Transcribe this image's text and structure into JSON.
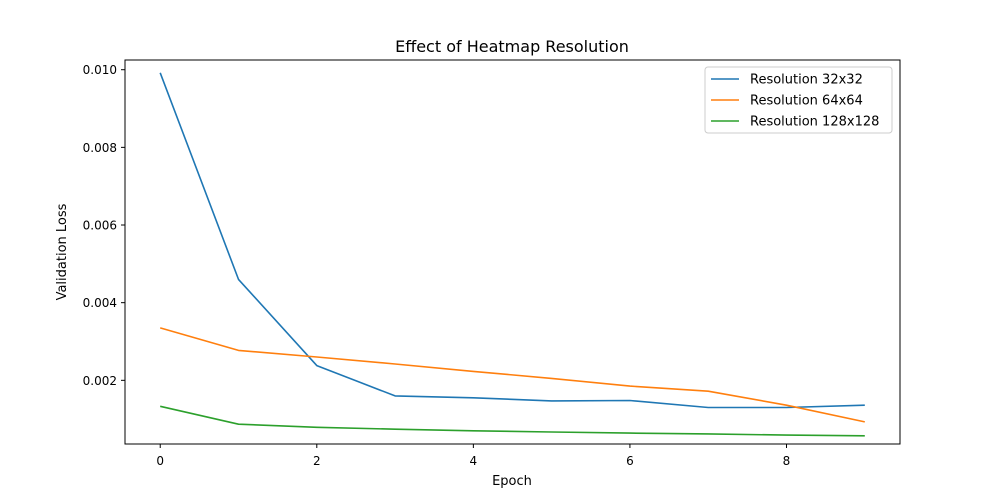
{
  "chart_data": {
    "type": "line",
    "title": "Effect of Heatmap Resolution",
    "xlabel": "Epoch",
    "ylabel": "Validation Loss",
    "x": [
      0,
      1,
      2,
      3,
      4,
      5,
      6,
      7,
      8,
      9
    ],
    "xlim": [
      -0.45,
      9.45
    ],
    "ylim": [
      0.00036,
      0.01025
    ],
    "xticks": [
      0,
      2,
      4,
      6,
      8
    ],
    "xtick_labels": [
      "0",
      "2",
      "4",
      "6",
      "8"
    ],
    "yticks": [
      0.002,
      0.004,
      0.006,
      0.008,
      0.01
    ],
    "ytick_labels": [
      "0.002",
      "0.004",
      "0.006",
      "0.008",
      "0.010"
    ],
    "grid": false,
    "legend_position": "top-right",
    "series": [
      {
        "name": "Resolution 32x32",
        "color": "#1f77b4",
        "values": [
          0.00992,
          0.0046,
          0.00238,
          0.0016,
          0.00155,
          0.00147,
          0.00148,
          0.0013,
          0.0013,
          0.00136
        ]
      },
      {
        "name": "Resolution 64x64",
        "color": "#ff7f0e",
        "values": [
          0.00335,
          0.00277,
          0.0026,
          0.00242,
          0.00223,
          0.00205,
          0.00185,
          0.00172,
          0.00136,
          0.00093
        ]
      },
      {
        "name": "Resolution 128x128",
        "color": "#2ca02c",
        "values": [
          0.00133,
          0.00087,
          0.00079,
          0.00074,
          0.0007,
          0.00067,
          0.00064,
          0.00062,
          0.00059,
          0.00057
        ]
      }
    ]
  }
}
